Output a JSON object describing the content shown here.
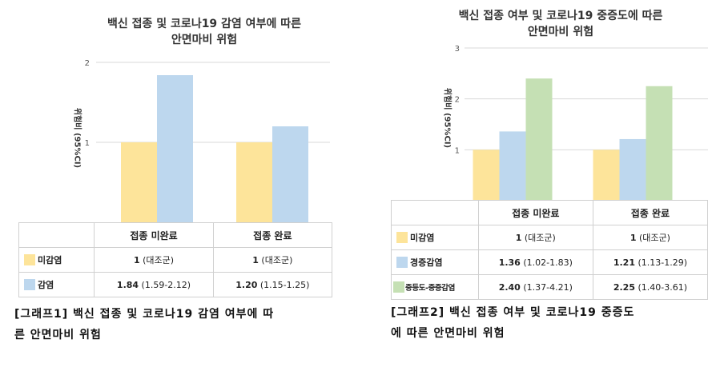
{
  "colors": {
    "unvaccinated": "#fde49a",
    "mild": "#bdd7ee",
    "severe": "#c5e0b4",
    "grid": "#d9d9d9",
    "axis_text": "#555555"
  },
  "chart1": {
    "title_line1": "백신 접종 및 코로나19 감염 여부에 따른",
    "title_line2": "안면마비 위험",
    "ylabel": "위험비 (95%CI)",
    "caption_line1": "[그래프1] 백신 접종 및 코로나19 감염 여부에 따",
    "caption_line2": "른 안면마비 위험",
    "table": {
      "headers": [
        "접종 미완료",
        "접종 완료"
      ],
      "rows": [
        {
          "label": "미감염",
          "cells": [
            [
              "1",
              " (대조군)"
            ],
            [
              "1",
              " (대조군)"
            ]
          ]
        },
        {
          "label": "감염",
          "cells": [
            [
              "1.84",
              " (1.59-2.12)"
            ],
            [
              "1.20",
              " (1.15-1.25)"
            ]
          ]
        }
      ]
    }
  },
  "chart2": {
    "title_line1": "백신 접종 여부 및 코로나19 중증도에 따른",
    "title_line2": "안면마비 위험",
    "ylabel": "위험비 (95%CI)",
    "caption_line1": "[그래프2] 백신 접종 여부 및 코로나19 중증도",
    "caption_line2": "에 따른 안면마비 위험",
    "table": {
      "headers": [
        "접종 미완료",
        "접종 완료"
      ],
      "rows": [
        {
          "label": "미감염",
          "cells": [
            [
              "1",
              " (대조군)"
            ],
            [
              "1",
              " (대조군)"
            ]
          ]
        },
        {
          "label": "경증감염",
          "cells": [
            [
              "1.36",
              " (1.02-1.83)"
            ],
            [
              "1.21",
              " (1.13-1.29)"
            ]
          ]
        },
        {
          "label": "중등도-중증감염",
          "cells": [
            [
              "2.40",
              " (1.37-4.21)"
            ],
            [
              "2.25",
              " (1.40-3.61)"
            ]
          ]
        }
      ]
    }
  },
  "chart_data": [
    {
      "type": "bar",
      "title": "백신 접종 및 코로나19 감염 여부에 따른 안면마비 위험",
      "xlabel": "",
      "ylabel": "위험비 (95%CI)",
      "categories": [
        "접종 미완료",
        "접종 완료"
      ],
      "series": [
        {
          "name": "미감염",
          "values": [
            1,
            1
          ]
        },
        {
          "name": "감염",
          "values": [
            1.84,
            1.2
          ]
        }
      ],
      "ylim": [
        0,
        2
      ],
      "yticks": [
        1,
        2
      ],
      "grid": true,
      "legend": "table-below"
    },
    {
      "type": "bar",
      "title": "백신 접종 여부 및 코로나19 중증도에 따른 안면마비 위험",
      "xlabel": "",
      "ylabel": "위험비 (95%CI)",
      "categories": [
        "접종 미완료",
        "접종 완료"
      ],
      "series": [
        {
          "name": "미감염",
          "values": [
            1,
            1
          ]
        },
        {
          "name": "경증감염",
          "values": [
            1.36,
            1.21
          ]
        },
        {
          "name": "중등도-중증감염",
          "values": [
            2.4,
            2.25
          ]
        }
      ],
      "ylim": [
        0,
        3
      ],
      "yticks": [
        1,
        2,
        3
      ],
      "grid": true,
      "legend": "table-below"
    }
  ]
}
